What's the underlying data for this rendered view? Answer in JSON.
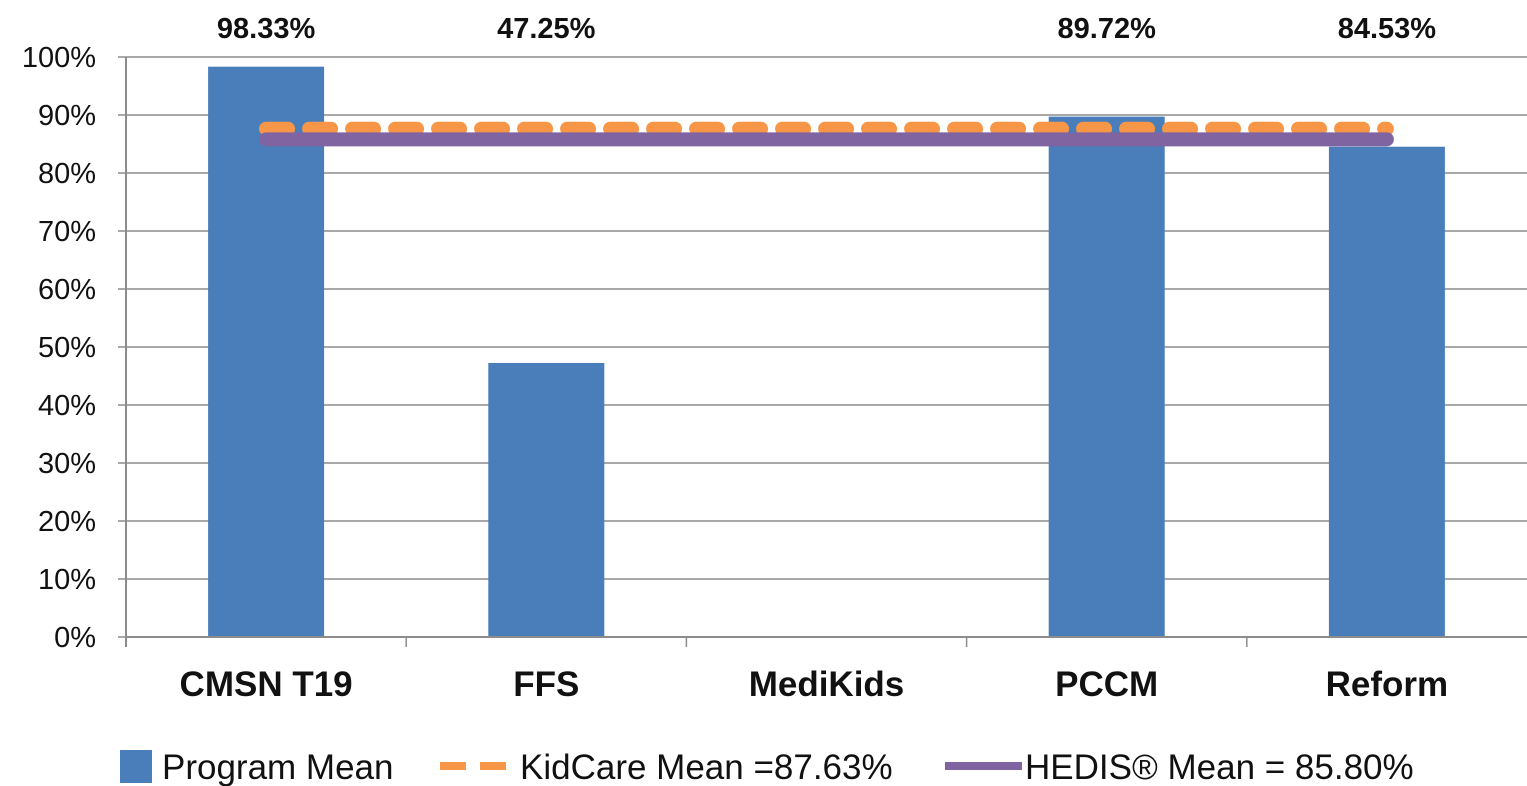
{
  "chart_data": {
    "type": "bar",
    "title": "",
    "xlabel": "",
    "ylabel": "",
    "categories": [
      "CMSN T19",
      "FFS",
      "MediKids",
      "PCCM",
      "Reform"
    ],
    "series": [
      {
        "name": "Program Mean",
        "values": [
          98.33,
          47.25,
          null,
          89.72,
          84.53
        ],
        "color": "#4a7ebb",
        "data_labels": [
          "98.33%",
          "47.25%",
          "",
          "89.72%",
          "84.53%"
        ]
      }
    ],
    "reference_lines": [
      {
        "name": "KidCare Mean =87.63%",
        "value": 87.63,
        "style": "dashed",
        "color": "#f79646"
      },
      {
        "name": "HEDIS® Mean = 85.80%",
        "value": 85.8,
        "style": "solid",
        "color": "#8064a2"
      }
    ],
    "ylim": [
      0,
      100
    ],
    "yticks": [
      "0%",
      "10%",
      "20%",
      "30%",
      "40%",
      "50%",
      "60%",
      "70%",
      "80%",
      "90%",
      "100%"
    ],
    "grid": true,
    "legend_position": "bottom"
  }
}
